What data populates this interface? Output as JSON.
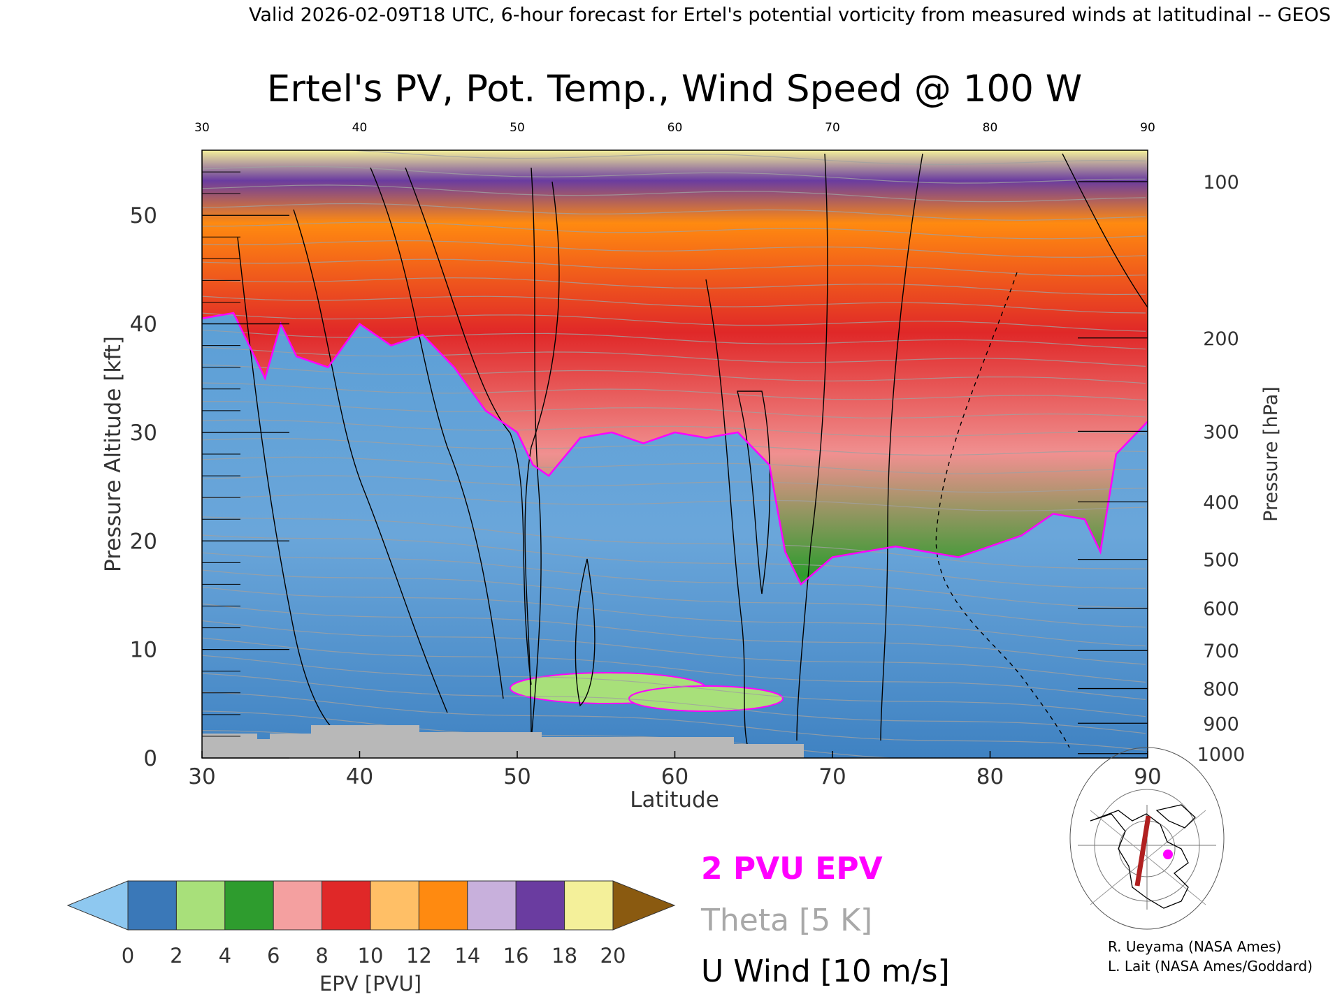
{
  "header": "Valid 2026-02-09T18 UTC, 6-hour forecast for Ertel's potential vorticity from measured winds at latitudinal -- GEOS",
  "chart_data": {
    "type": "heatmap",
    "title": "Ertel's PV, Pot. Temp., Wind Speed @ 100 W",
    "xlabel": "Latitude",
    "ylabel": "Pressure Altitude [kft]",
    "y2label": "Pressure [hPa]",
    "xlim": [
      30,
      90
    ],
    "ylim": [
      0,
      56
    ],
    "xticks": [
      "30",
      "40",
      "50",
      "60",
      "70",
      "80",
      "90"
    ],
    "yticks": [
      "0",
      "10",
      "20",
      "30",
      "40",
      "50"
    ],
    "pressure_ticks": [
      {
        "label": "100",
        "kft": 53.1
      },
      {
        "label": "200",
        "kft": 38.7
      },
      {
        "label": "300",
        "kft": 30.1
      },
      {
        "label": "400",
        "kft": 23.6
      },
      {
        "label": "500",
        "kft": 18.3
      },
      {
        "label": "600",
        "kft": 13.8
      },
      {
        "label": "700",
        "kft": 9.9
      },
      {
        "label": "800",
        "kft": 6.4
      },
      {
        "label": "900",
        "kft": 3.2
      },
      {
        "label": "1000",
        "kft": 0.4
      }
    ],
    "tropopause_2pvu_kft": [
      [
        30,
        40.5
      ],
      [
        32,
        41
      ],
      [
        34,
        35
      ],
      [
        35,
        40
      ],
      [
        36,
        37
      ],
      [
        38,
        36
      ],
      [
        40,
        40
      ],
      [
        42,
        38
      ],
      [
        44,
        39
      ],
      [
        46,
        36
      ],
      [
        47,
        34
      ],
      [
        48,
        32
      ],
      [
        50,
        30
      ],
      [
        51,
        27
      ],
      [
        52,
        26
      ],
      [
        54,
        29.5
      ],
      [
        56,
        30
      ],
      [
        58,
        29
      ],
      [
        60,
        30
      ],
      [
        62,
        29.5
      ],
      [
        64,
        30
      ],
      [
        66,
        27
      ],
      [
        67,
        19
      ],
      [
        68,
        16
      ],
      [
        70,
        18.5
      ],
      [
        72,
        19
      ],
      [
        74,
        19.5
      ],
      [
        76,
        19
      ],
      [
        78,
        18.5
      ],
      [
        80,
        19.5
      ],
      [
        82,
        20.5
      ],
      [
        84,
        22.5
      ],
      [
        86,
        22
      ],
      [
        87,
        19
      ],
      [
        88,
        28
      ],
      [
        90,
        31
      ]
    ],
    "colorbar": {
      "label": "EPV [PVU]",
      "ticks": [
        "0",
        "2",
        "4",
        "6",
        "8",
        "10",
        "12",
        "14",
        "16",
        "18",
        "20"
      ],
      "colors": [
        "#3a78b8",
        "#a8e07a",
        "#2e9c2e",
        "#f4a0a0",
        "#e02828",
        "#ffbf66",
        "#ff8a10",
        "#c8b0dc",
        "#6a3ca0",
        "#f4f09a"
      ],
      "under_color": "#8ec8f0",
      "over_color": "#8a5a10"
    },
    "legend": [
      {
        "label": "2 PVU EPV",
        "color": "#ff00ff"
      },
      {
        "label": "Theta [5 K]",
        "color": "#a8a8a8"
      },
      {
        "label": "U Wind [10 m/s]",
        "color": "#000000"
      }
    ]
  },
  "credits": [
    "R. Ueyama (NASA Ames)",
    "L. Lait (NASA Ames/Goddard)"
  ]
}
